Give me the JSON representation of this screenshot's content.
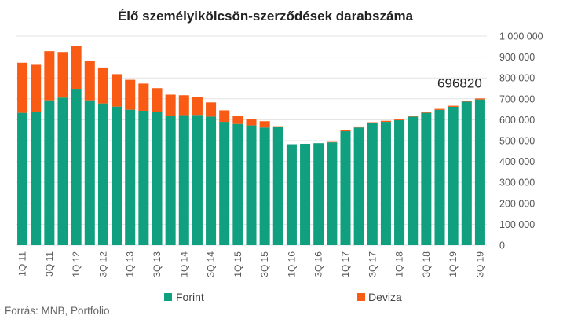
{
  "chart_data": {
    "type": "bar",
    "stacked": true,
    "title": "Élő személyikölcsön-szerződések darabszáma",
    "categories": [
      "1Q 11",
      "2Q 11",
      "3Q 11",
      "4Q 11",
      "1Q 12",
      "2Q 12",
      "3Q 12",
      "4Q 12",
      "1Q 13",
      "2Q 13",
      "3Q 13",
      "4Q 13",
      "1Q 14",
      "2Q 14",
      "3Q 14",
      "4Q 14",
      "1Q 15",
      "2Q 15",
      "3Q 15",
      "4Q 15",
      "1Q 16",
      "2Q 16",
      "3Q 16",
      "4Q 16",
      "1Q 17",
      "2Q 17",
      "3Q 17",
      "4Q 17",
      "1Q 18",
      "2Q 18",
      "3Q 18",
      "4Q 18",
      "1Q 19",
      "2Q 19",
      "3Q 19"
    ],
    "x_tick_labels": [
      "1Q 11",
      "3Q 11",
      "1Q 12",
      "3Q 12",
      "1Q 13",
      "3Q 13",
      "1Q 14",
      "3Q 14",
      "1Q 15",
      "3Q 15",
      "1Q 16",
      "3Q 16",
      "1Q 17",
      "3Q 17",
      "1Q 18",
      "3Q 18",
      "1Q 19",
      "3Q 19"
    ],
    "series": [
      {
        "name": "Forint",
        "color": "#109f7f",
        "values": [
          633000,
          638000,
          693000,
          706000,
          748000,
          693000,
          678000,
          663000,
          648000,
          643000,
          636000,
          618000,
          622000,
          623000,
          615000,
          590000,
          580000,
          573000,
          563000,
          565000,
          483000,
          485000,
          488000,
          492000,
          545000,
          563000,
          583000,
          590000,
          598000,
          615000,
          633000,
          647000,
          662000,
          686000,
          696820
        ]
      },
      {
        "name": "Deviza",
        "color": "#f95a14",
        "values": [
          240000,
          225000,
          235000,
          218000,
          205000,
          190000,
          172000,
          155000,
          143000,
          130000,
          115000,
          102000,
          95000,
          85000,
          68000,
          55000,
          38000,
          30000,
          30000,
          4000,
          0,
          0,
          0,
          2000,
          5000,
          5000,
          5000,
          5000,
          5000,
          5000,
          5000,
          5000,
          5000,
          5000,
          5000
        ]
      }
    ],
    "ylim": [
      0,
      1000000
    ],
    "y_ticks": [
      "0",
      "100 000",
      "200 000",
      "300 000",
      "400 000",
      "500 000",
      "600 000",
      "700 000",
      "800 000",
      "900 000",
      "1 000 000"
    ],
    "annotation": {
      "text": "696820",
      "category": "3Q 19"
    },
    "legend_position": "bottom",
    "grid": true,
    "source": "Forrás: MNB, Portfolio"
  }
}
